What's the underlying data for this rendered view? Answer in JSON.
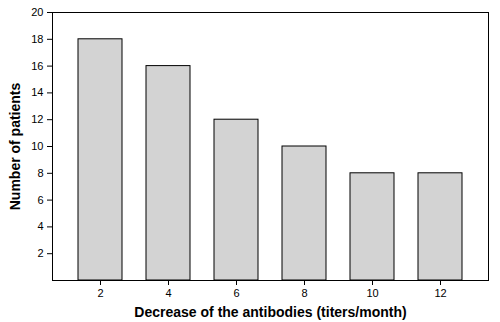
{
  "chart_data": {
    "type": "bar",
    "categories": [
      "2",
      "4",
      "6",
      "8",
      "10",
      "12"
    ],
    "values": [
      18,
      16,
      12,
      10,
      8,
      8
    ],
    "color": "#d3d3d3",
    "xlabel": "Decrease of the antibodies (titers/month)",
    "ylabel": "Number of patients",
    "ylim": [
      0,
      20
    ],
    "yticks": [
      2,
      4,
      6,
      8,
      10,
      12,
      14,
      16,
      18,
      20
    ],
    "grid": false
  }
}
